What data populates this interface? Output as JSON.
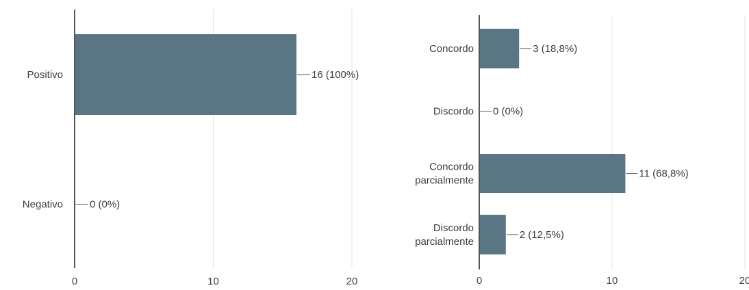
{
  "chart_data": [
    {
      "type": "bar",
      "orientation": "horizontal",
      "categories": [
        [
          "Positivo"
        ],
        [
          "Negativo"
        ]
      ],
      "values": [
        16,
        0
      ],
      "data_labels": [
        "16 (100%)",
        "0 (0%)"
      ],
      "xlim": [
        0,
        20
      ],
      "xticks": [
        0,
        10,
        20
      ],
      "tick_labels": [
        "0",
        "10",
        "20"
      ],
      "grid": true,
      "bar_color": "#5a7583"
    },
    {
      "type": "bar",
      "orientation": "horizontal",
      "categories": [
        [
          "Concordo"
        ],
        [
          "Discordo"
        ],
        [
          "Concordo",
          "parcialmente"
        ],
        [
          "Discordo",
          "parcialmente"
        ]
      ],
      "values": [
        3,
        0,
        11,
        2
      ],
      "data_labels": [
        "3 (18,8%)",
        "0 (0%)",
        "11 (68,8%)",
        "2 (12,5%)"
      ],
      "xlim": [
        0,
        20
      ],
      "xticks": [
        0,
        10,
        20
      ],
      "tick_labels": [
        "0",
        "10",
        "20"
      ],
      "grid": true,
      "bar_color": "#5a7583"
    }
  ]
}
